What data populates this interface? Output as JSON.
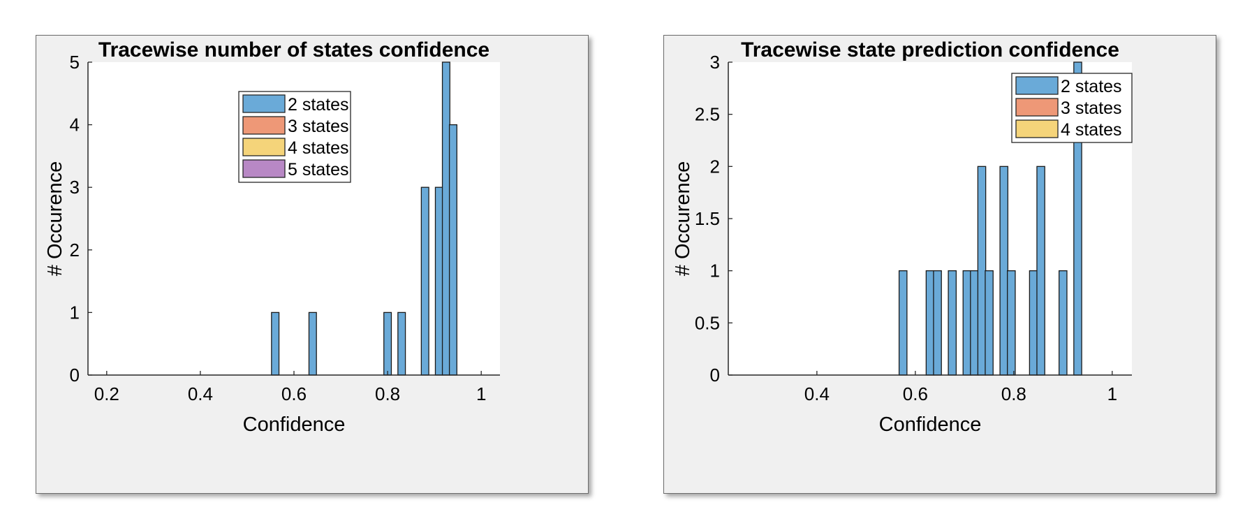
{
  "chart_data": [
    {
      "type": "bar",
      "title": "Tracewise number of states confidence",
      "xlabel": "Confidence",
      "ylabel": "# Occurence",
      "xlim": [
        0.16,
        1.04
      ],
      "ylim": [
        0,
        5
      ],
      "xticks": [
        "0.2",
        "0.4",
        "0.6",
        "0.8",
        "1"
      ],
      "xtick_values": [
        0.2,
        0.4,
        0.6,
        0.8,
        1.0
      ],
      "yticks": [
        "0",
        "1",
        "2",
        "3",
        "4",
        "5"
      ],
      "ytick_values": [
        0,
        1,
        2,
        3,
        4,
        5
      ],
      "bin_width": 0.016,
      "legend_position": "top-center",
      "series": [
        {
          "name": "2 states",
          "color": "#6aaad8",
          "x": [
            0.56,
            0.64,
            0.8,
            0.83,
            0.88,
            0.91,
            0.925,
            0.94
          ],
          "values": [
            1,
            1,
            1,
            1,
            3,
            3,
            5,
            4
          ]
        },
        {
          "name": "3 states",
          "color": "#ee9877",
          "x": [],
          "values": []
        },
        {
          "name": "4 states",
          "color": "#f5d47a",
          "x": [],
          "values": []
        },
        {
          "name": "5 states",
          "color": "#b888c5",
          "x": [],
          "values": []
        }
      ]
    },
    {
      "type": "bar",
      "title": "Tracewise state prediction confidence",
      "xlabel": "Confidence",
      "ylabel": "# Occurence",
      "xlim": [
        0.22,
        1.04
      ],
      "ylim": [
        0,
        3
      ],
      "xticks": [
        "0.4",
        "0.6",
        "0.8",
        "1"
      ],
      "xtick_values": [
        0.4,
        0.6,
        0.8,
        1.0
      ],
      "yticks": [
        "0",
        "0.5",
        "1",
        "1.5",
        "2",
        "2.5",
        "3"
      ],
      "ytick_values": [
        0,
        0.5,
        1,
        1.5,
        2,
        2.5,
        3
      ],
      "bin_width": 0.016,
      "legend_position": "top-right",
      "series": [
        {
          "name": "2 states",
          "color": "#6aaad8",
          "x": [
            0.575,
            0.63,
            0.645,
            0.675,
            0.705,
            0.72,
            0.735,
            0.75,
            0.78,
            0.795,
            0.84,
            0.855,
            0.9,
            0.93
          ],
          "values": [
            1,
            1,
            1,
            1,
            1,
            1,
            2,
            1,
            2,
            1,
            1,
            2,
            1,
            3
          ]
        },
        {
          "name": "3 states",
          "color": "#ee9877",
          "x": [],
          "values": []
        },
        {
          "name": "4 states",
          "color": "#f5d47a",
          "x": [],
          "values": []
        }
      ]
    }
  ]
}
